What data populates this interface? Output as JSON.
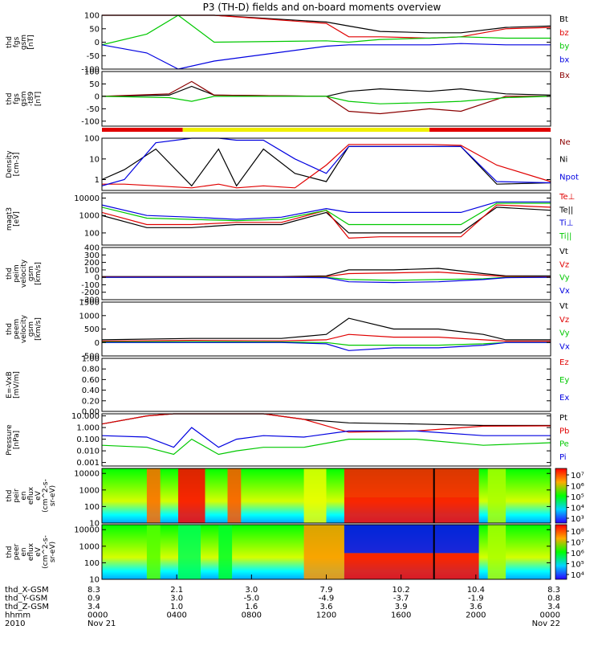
{
  "title": "P3 (TH-D) fields and on-board moments overview",
  "colors": {
    "black": "#000000",
    "red": "#e00000",
    "green": "#00c800",
    "blue": "#0000e0",
    "yellow": "#f0f000",
    "darkred": "#8b0000"
  },
  "chart_data": [
    {
      "type": "line",
      "panel": "fgs",
      "ylabel": [
        "thd",
        "fgs",
        "gsm",
        "[nT]"
      ],
      "ylim": [
        -100,
        100
      ],
      "yticks": [
        "100",
        "50",
        "0",
        "-50",
        "-100"
      ],
      "legend": [
        "Bt",
        "bz",
        "by",
        "bx"
      ],
      "series": [
        {
          "name": "Bt",
          "color": "black",
          "x": [
            0,
            0.05,
            0.17,
            0.25,
            0.5,
            0.55,
            0.62,
            0.73,
            0.8,
            0.9,
            1
          ],
          "values": [
            100,
            100,
            100,
            100,
            75,
            60,
            40,
            35,
            35,
            55,
            60
          ]
        },
        {
          "name": "bz",
          "color": "red",
          "x": [
            0,
            0.05,
            0.17,
            0.25,
            0.5,
            0.55,
            0.62,
            0.73,
            0.8,
            0.9,
            1
          ],
          "values": [
            100,
            100,
            100,
            100,
            70,
            20,
            20,
            15,
            20,
            50,
            55
          ]
        },
        {
          "name": "by",
          "color": "green",
          "x": [
            0,
            0.1,
            0.17,
            0.25,
            0.5,
            0.55,
            0.62,
            0.73,
            0.8,
            0.9,
            1
          ],
          "values": [
            -10,
            30,
            100,
            0,
            5,
            0,
            10,
            15,
            20,
            15,
            15
          ]
        },
        {
          "name": "bx",
          "color": "blue",
          "x": [
            0,
            0.1,
            0.17,
            0.25,
            0.5,
            0.55,
            0.62,
            0.73,
            0.8,
            0.9,
            1
          ],
          "values": [
            -10,
            -40,
            -100,
            -70,
            -15,
            -10,
            -10,
            -10,
            -5,
            -10,
            -10
          ]
        }
      ]
    },
    {
      "type": "line",
      "panel": "fgs-gsm-t89",
      "ylabel": [
        "thd",
        "fgs",
        "gsm",
        "-t89",
        "[nT]"
      ],
      "ylim": [
        -120,
        100
      ],
      "yticks": [
        "100",
        "50",
        "0",
        "-50",
        "-100"
      ],
      "legend": [
        "Bx"
      ],
      "series": [
        {
          "name": "Bx",
          "color": "black",
          "x": [
            0,
            0.15,
            0.2,
            0.25,
            0.5,
            0.55,
            0.62,
            0.73,
            0.8,
            0.9,
            1
          ],
          "values": [
            0,
            5,
            40,
            5,
            0,
            20,
            30,
            20,
            30,
            10,
            5
          ]
        },
        {
          "name": "",
          "color": "darkred",
          "x": [
            0,
            0.15,
            0.2,
            0.25,
            0.5,
            0.55,
            0.62,
            0.73,
            0.8,
            0.9,
            1
          ],
          "values": [
            0,
            10,
            60,
            5,
            0,
            -60,
            -70,
            -50,
            -60,
            0,
            0
          ]
        },
        {
          "name": "",
          "color": "green",
          "x": [
            0,
            0.15,
            0.2,
            0.25,
            0.5,
            0.55,
            0.62,
            0.73,
            0.8,
            0.9,
            1
          ],
          "values": [
            0,
            -5,
            -20,
            0,
            0,
            -20,
            -30,
            -25,
            -20,
            -5,
            0
          ]
        }
      ]
    },
    {
      "type": "line",
      "panel": "density",
      "ylabel": [
        "Density",
        "[cm-3]"
      ],
      "ylim": [
        0.3,
        100
      ],
      "log": true,
      "yticks": [
        "100",
        "10",
        "1"
      ],
      "legend": [
        "Ne",
        "Ni",
        "Npot"
      ],
      "series": [
        {
          "name": "Ni",
          "color": "black",
          "x": [
            0,
            0.05,
            0.12,
            0.2,
            0.26,
            0.3,
            0.36,
            0.43,
            0.5,
            0.55,
            0.62,
            0.73,
            0.8,
            0.88,
            1
          ],
          "values": [
            1,
            3,
            30,
            0.5,
            30,
            0.5,
            30,
            2,
            0.8,
            40,
            40,
            40,
            40,
            0.6,
            0.7
          ]
        },
        {
          "name": "Ne",
          "color": "red",
          "x": [
            0,
            0.05,
            0.12,
            0.2,
            0.26,
            0.3,
            0.36,
            0.43,
            0.5,
            0.55,
            0.62,
            0.73,
            0.8,
            0.88,
            1
          ],
          "values": [
            0.6,
            0.6,
            0.5,
            0.4,
            0.6,
            0.4,
            0.5,
            0.4,
            5,
            50,
            50,
            50,
            45,
            5,
            0.8
          ]
        },
        {
          "name": "Npot",
          "color": "blue",
          "x": [
            0,
            0.05,
            0.12,
            0.2,
            0.26,
            0.3,
            0.36,
            0.43,
            0.5,
            0.55,
            0.62,
            0.73,
            0.8,
            0.88,
            1
          ],
          "values": [
            0.5,
            1,
            60,
            100,
            100,
            80,
            80,
            10,
            2,
            40,
            40,
            40,
            40,
            0.8,
            0.7
          ]
        }
      ]
    },
    {
      "type": "line",
      "panel": "temperature",
      "ylabel": [
        "magt3",
        "[eV]"
      ],
      "ylim": [
        20,
        20000
      ],
      "log": true,
      "yticks": [
        "10000",
        "1000",
        "100"
      ],
      "legend": [
        "Te⊥",
        "Te||",
        "Ti⊥",
        "Ti||"
      ],
      "series": [
        {
          "name": "Te||",
          "color": "black",
          "x": [
            0,
            0.1,
            0.2,
            0.3,
            0.4,
            0.5,
            0.55,
            0.62,
            0.73,
            0.8,
            0.88,
            1
          ],
          "values": [
            1000,
            200,
            200,
            300,
            300,
            1500,
            100,
            100,
            100,
            100,
            3000,
            2000
          ]
        },
        {
          "name": "Te⊥",
          "color": "red",
          "x": [
            0,
            0.1,
            0.2,
            0.3,
            0.4,
            0.5,
            0.55,
            0.62,
            0.73,
            0.8,
            0.88,
            1
          ],
          "values": [
            1500,
            300,
            300,
            400,
            400,
            2000,
            50,
            60,
            60,
            60,
            4000,
            3000
          ]
        },
        {
          "name": "Ti⊥",
          "color": "blue",
          "x": [
            0,
            0.1,
            0.2,
            0.3,
            0.4,
            0.5,
            0.55,
            0.62,
            0.73,
            0.8,
            0.88,
            1
          ],
          "values": [
            4000,
            1000,
            800,
            600,
            800,
            2500,
            1500,
            1500,
            1500,
            1500,
            6000,
            6000
          ]
        },
        {
          "name": "Ti||",
          "color": "green",
          "x": [
            0,
            0.1,
            0.2,
            0.3,
            0.4,
            0.5,
            0.55,
            0.62,
            0.73,
            0.8,
            0.88,
            1
          ],
          "values": [
            3000,
            700,
            600,
            500,
            600,
            2000,
            300,
            300,
            300,
            300,
            5000,
            5000
          ]
        }
      ]
    },
    {
      "type": "line",
      "panel": "peim-velocity",
      "ylabel": [
        "thd",
        "peim",
        "velocity",
        "gsm",
        "[km/s]"
      ],
      "ylim": [
        -300,
        400
      ],
      "yticks": [
        "400",
        "300",
        "200",
        "100",
        "0",
        "-100",
        "-200",
        "-300"
      ],
      "legend": [
        "Vt",
        "Vz",
        "Vy",
        "Vx"
      ],
      "series": [
        {
          "name": "Vt",
          "color": "black",
          "x": [
            0,
            0.2,
            0.4,
            0.5,
            0.55,
            0.65,
            0.75,
            0.85,
            0.9,
            1
          ],
          "values": [
            10,
            10,
            10,
            20,
            100,
            100,
            120,
            50,
            20,
            20
          ]
        },
        {
          "name": "Vz",
          "color": "red",
          "x": [
            0,
            0.2,
            0.4,
            0.5,
            0.55,
            0.65,
            0.75,
            0.85,
            0.9,
            1
          ],
          "values": [
            5,
            5,
            5,
            10,
            50,
            60,
            70,
            30,
            10,
            5
          ]
        },
        {
          "name": "Vy",
          "color": "green",
          "x": [
            0,
            0.2,
            0.4,
            0.5,
            0.55,
            0.65,
            0.75,
            0.85,
            0.9,
            1
          ],
          "values": [
            0,
            0,
            0,
            0,
            -30,
            -40,
            -30,
            -20,
            0,
            0
          ]
        },
        {
          "name": "Vx",
          "color": "blue",
          "x": [
            0,
            0.2,
            0.4,
            0.5,
            0.55,
            0.65,
            0.75,
            0.85,
            0.9,
            1
          ],
          "values": [
            0,
            0,
            0,
            -5,
            -60,
            -70,
            -60,
            -30,
            -5,
            0
          ]
        }
      ]
    },
    {
      "type": "line",
      "panel": "peem-velocity",
      "ylabel": [
        "thd",
        "peem",
        "velocity",
        "gsm",
        "[km/s]"
      ],
      "ylim": [
        -500,
        1500
      ],
      "yticks": [
        "1500",
        "1000",
        "500",
        "0",
        "-500"
      ],
      "legend": [
        "Vt",
        "Vz",
        "Vy",
        "Vx"
      ],
      "series": [
        {
          "name": "Vt",
          "color": "black",
          "x": [
            0,
            0.2,
            0.4,
            0.5,
            0.55,
            0.65,
            0.75,
            0.85,
            0.9,
            1
          ],
          "values": [
            100,
            150,
            150,
            300,
            900,
            500,
            500,
            300,
            100,
            100
          ]
        },
        {
          "name": "Vz",
          "color": "red",
          "x": [
            0,
            0.2,
            0.4,
            0.5,
            0.55,
            0.65,
            0.75,
            0.85,
            0.9,
            1
          ],
          "values": [
            50,
            80,
            60,
            100,
            300,
            200,
            200,
            100,
            50,
            50
          ]
        },
        {
          "name": "Vy",
          "color": "green",
          "x": [
            0,
            0.2,
            0.4,
            0.5,
            0.55,
            0.65,
            0.75,
            0.85,
            0.9,
            1
          ],
          "values": [
            20,
            30,
            20,
            0,
            -100,
            -100,
            -100,
            -50,
            0,
            0
          ]
        },
        {
          "name": "Vx",
          "color": "blue",
          "x": [
            0,
            0.2,
            0.4,
            0.5,
            0.55,
            0.65,
            0.75,
            0.85,
            0.9,
            1
          ],
          "values": [
            0,
            0,
            0,
            -50,
            -300,
            -200,
            -200,
            -100,
            0,
            0
          ]
        }
      ]
    },
    {
      "type": "line",
      "panel": "e-field",
      "ylabel": [
        "E=-VxB",
        "[mV/m]"
      ],
      "ylim": [
        0,
        1
      ],
      "yticks": [
        "1.00",
        "0.80",
        "0.60",
        "0.40",
        "0.20",
        "0.00"
      ],
      "legend": [
        "Ez",
        "Ey",
        "Ex"
      ],
      "series": []
    },
    {
      "type": "line",
      "panel": "pressure",
      "ylabel": [
        "Pressure",
        "[nPa]"
      ],
      "ylim": [
        0.0005,
        15
      ],
      "log": true,
      "yticks": [
        "10.000",
        "1.000",
        "0.100",
        "0.010",
        "0.001"
      ],
      "legend": [
        "Pt",
        "Pb",
        "Pe",
        "Pi"
      ],
      "series": [
        {
          "name": "Pt",
          "color": "black",
          "x": [
            0,
            0.1,
            0.16,
            0.2,
            0.3,
            0.36,
            0.45,
            0.55,
            0.7,
            0.85,
            1
          ],
          "values": [
            2,
            10,
            15,
            15,
            15,
            15,
            5,
            2.5,
            2,
            1.5,
            1.5
          ]
        },
        {
          "name": "Pb",
          "color": "red",
          "x": [
            0,
            0.1,
            0.16,
            0.2,
            0.3,
            0.36,
            0.45,
            0.55,
            0.7,
            0.85,
            1
          ],
          "values": [
            2,
            10,
            15,
            15,
            15,
            15,
            5,
            0.4,
            0.5,
            1.3,
            1.4
          ]
        },
        {
          "name": "Pi",
          "color": "blue",
          "x": [
            0,
            0.1,
            0.16,
            0.2,
            0.26,
            0.3,
            0.36,
            0.45,
            0.55,
            0.7,
            0.85,
            1
          ],
          "values": [
            0.2,
            0.15,
            0.02,
            1,
            0.02,
            0.1,
            0.2,
            0.15,
            0.5,
            0.5,
            0.2,
            0.2
          ]
        },
        {
          "name": "Pe",
          "color": "green",
          "x": [
            0,
            0.1,
            0.16,
            0.2,
            0.26,
            0.3,
            0.36,
            0.45,
            0.55,
            0.7,
            0.85,
            1
          ],
          "values": [
            0.03,
            0.02,
            0.005,
            0.1,
            0.005,
            0.01,
            0.02,
            0.02,
            0.1,
            0.1,
            0.03,
            0.05
          ]
        }
      ]
    },
    {
      "type": "heatmap",
      "panel": "peir-en-eflux",
      "ylabel": [
        "thd",
        "peir",
        "en",
        "eflux",
        "eV",
        "(cm^2-s-",
        "sr-eV)"
      ],
      "ylim": [
        10,
        20000
      ],
      "log": true,
      "yticks": [
        "10000",
        "1000",
        "100",
        "10"
      ],
      "colorbar_ticks": [
        "10⁷",
        "10⁶",
        "10⁵",
        "10⁴",
        "10³"
      ]
    },
    {
      "type": "heatmap",
      "panel": "peer-en-eflux",
      "ylabel": [
        "thd",
        "peer",
        "en",
        "eflux",
        "eV",
        "(cm^2-s-",
        "sr-eV)"
      ],
      "ylim": [
        10,
        20000
      ],
      "log": true,
      "yticks": [
        "10000",
        "1000",
        "100",
        "10"
      ],
      "colorbar_ticks": [
        "10⁸",
        "10⁷",
        "10⁶",
        "10⁵",
        "10⁴"
      ]
    }
  ],
  "footer": {
    "labels": [
      "thd_X-GSM",
      "thd_Y-GSM",
      "thd_Z-GSM",
      "hhmm",
      "2010"
    ],
    "columns": [
      [
        "8.3",
        "0.9",
        "3.4",
        "0000",
        "Nov 21"
      ],
      [
        "2.1",
        "3.0",
        "1.0",
        "0400",
        ""
      ],
      [
        "3.0",
        "-5.0",
        "1.6",
        "0800",
        ""
      ],
      [
        "7.9",
        "-4.9",
        "3.6",
        "1200",
        ""
      ],
      [
        "10.2",
        "-3.7",
        "3.9",
        "1600",
        ""
      ],
      [
        "10.4",
        "-1.9",
        "3.6",
        "2000",
        ""
      ],
      [
        "8.3",
        "0.8",
        "3.4",
        "0000",
        "Nov 22"
      ]
    ]
  }
}
